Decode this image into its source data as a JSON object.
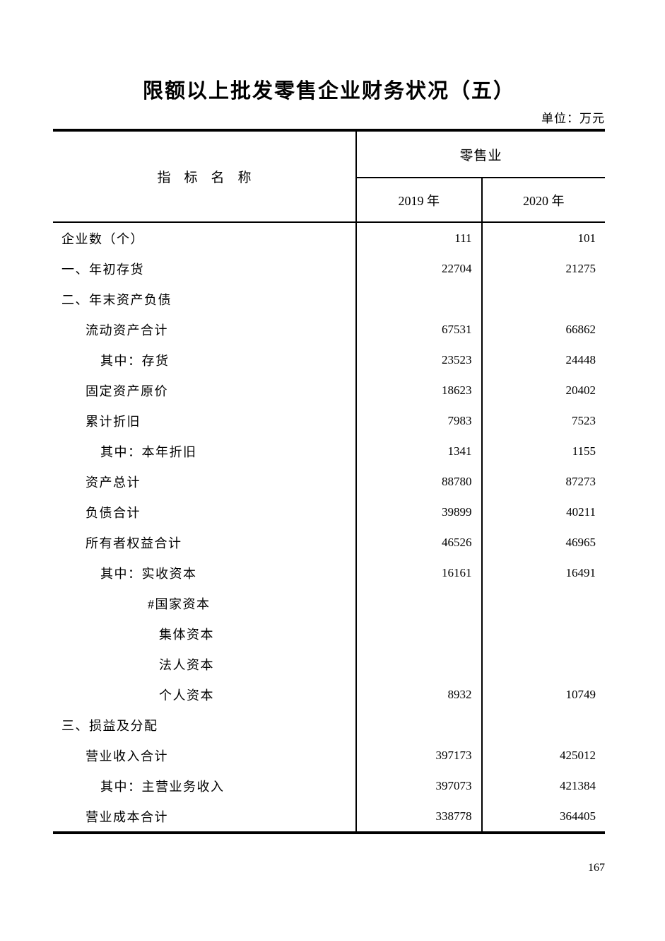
{
  "page": {
    "title": "限额以上批发零售企业财务状况（五）",
    "unit_label": "单位：万元",
    "page_number": "167"
  },
  "table": {
    "indicator_header": "指　标　名　称",
    "group_header": "零售业",
    "year_headers": [
      "2019 年",
      "2020 年"
    ],
    "rows": [
      {
        "label": "企业数（个）",
        "indent": 0,
        "v2019": "111",
        "v2020": "101"
      },
      {
        "label": "一、年初存货",
        "indent": 0,
        "v2019": "22704",
        "v2020": "21275"
      },
      {
        "label": "二、年末资产负债",
        "indent": 0,
        "v2019": "",
        "v2020": ""
      },
      {
        "label": "流动资产合计",
        "indent": 1,
        "v2019": "67531",
        "v2020": "66862"
      },
      {
        "label": "其中：存货",
        "indent": 2,
        "v2019": "23523",
        "v2020": "24448"
      },
      {
        "label": "固定资产原价",
        "indent": 1,
        "v2019": "18623",
        "v2020": "20402"
      },
      {
        "label": "累计折旧",
        "indent": 1,
        "v2019": "7983",
        "v2020": "7523"
      },
      {
        "label": "其中：本年折旧",
        "indent": 2,
        "v2019": "1341",
        "v2020": "1155"
      },
      {
        "label": "资产总计",
        "indent": 1,
        "v2019": "88780",
        "v2020": "87273"
      },
      {
        "label": "负债合计",
        "indent": 1,
        "v2019": "39899",
        "v2020": "40211"
      },
      {
        "label": "所有者权益合计",
        "indent": 1,
        "v2019": "46526",
        "v2020": "46965"
      },
      {
        "label": "其中：实收资本",
        "indent": 2,
        "v2019": "16161",
        "v2020": "16491"
      },
      {
        "label": "#国家资本",
        "indent": 3,
        "v2019": "",
        "v2020": ""
      },
      {
        "label": "集体资本",
        "indent": 4,
        "v2019": "",
        "v2020": ""
      },
      {
        "label": "法人资本",
        "indent": 4,
        "v2019": "",
        "v2020": ""
      },
      {
        "label": "个人资本",
        "indent": 4,
        "v2019": "8932",
        "v2020": "10749"
      },
      {
        "label": "三、损益及分配",
        "indent": 0,
        "v2019": "",
        "v2020": ""
      },
      {
        "label": "营业收入合计",
        "indent": 1,
        "v2019": "397173",
        "v2020": "425012"
      },
      {
        "label": "其中：主营业务收入",
        "indent": 2,
        "v2019": "397073",
        "v2020": "421384"
      },
      {
        "label": "营业成本合计",
        "indent": 1,
        "v2019": "338778",
        "v2020": "364405"
      }
    ]
  }
}
